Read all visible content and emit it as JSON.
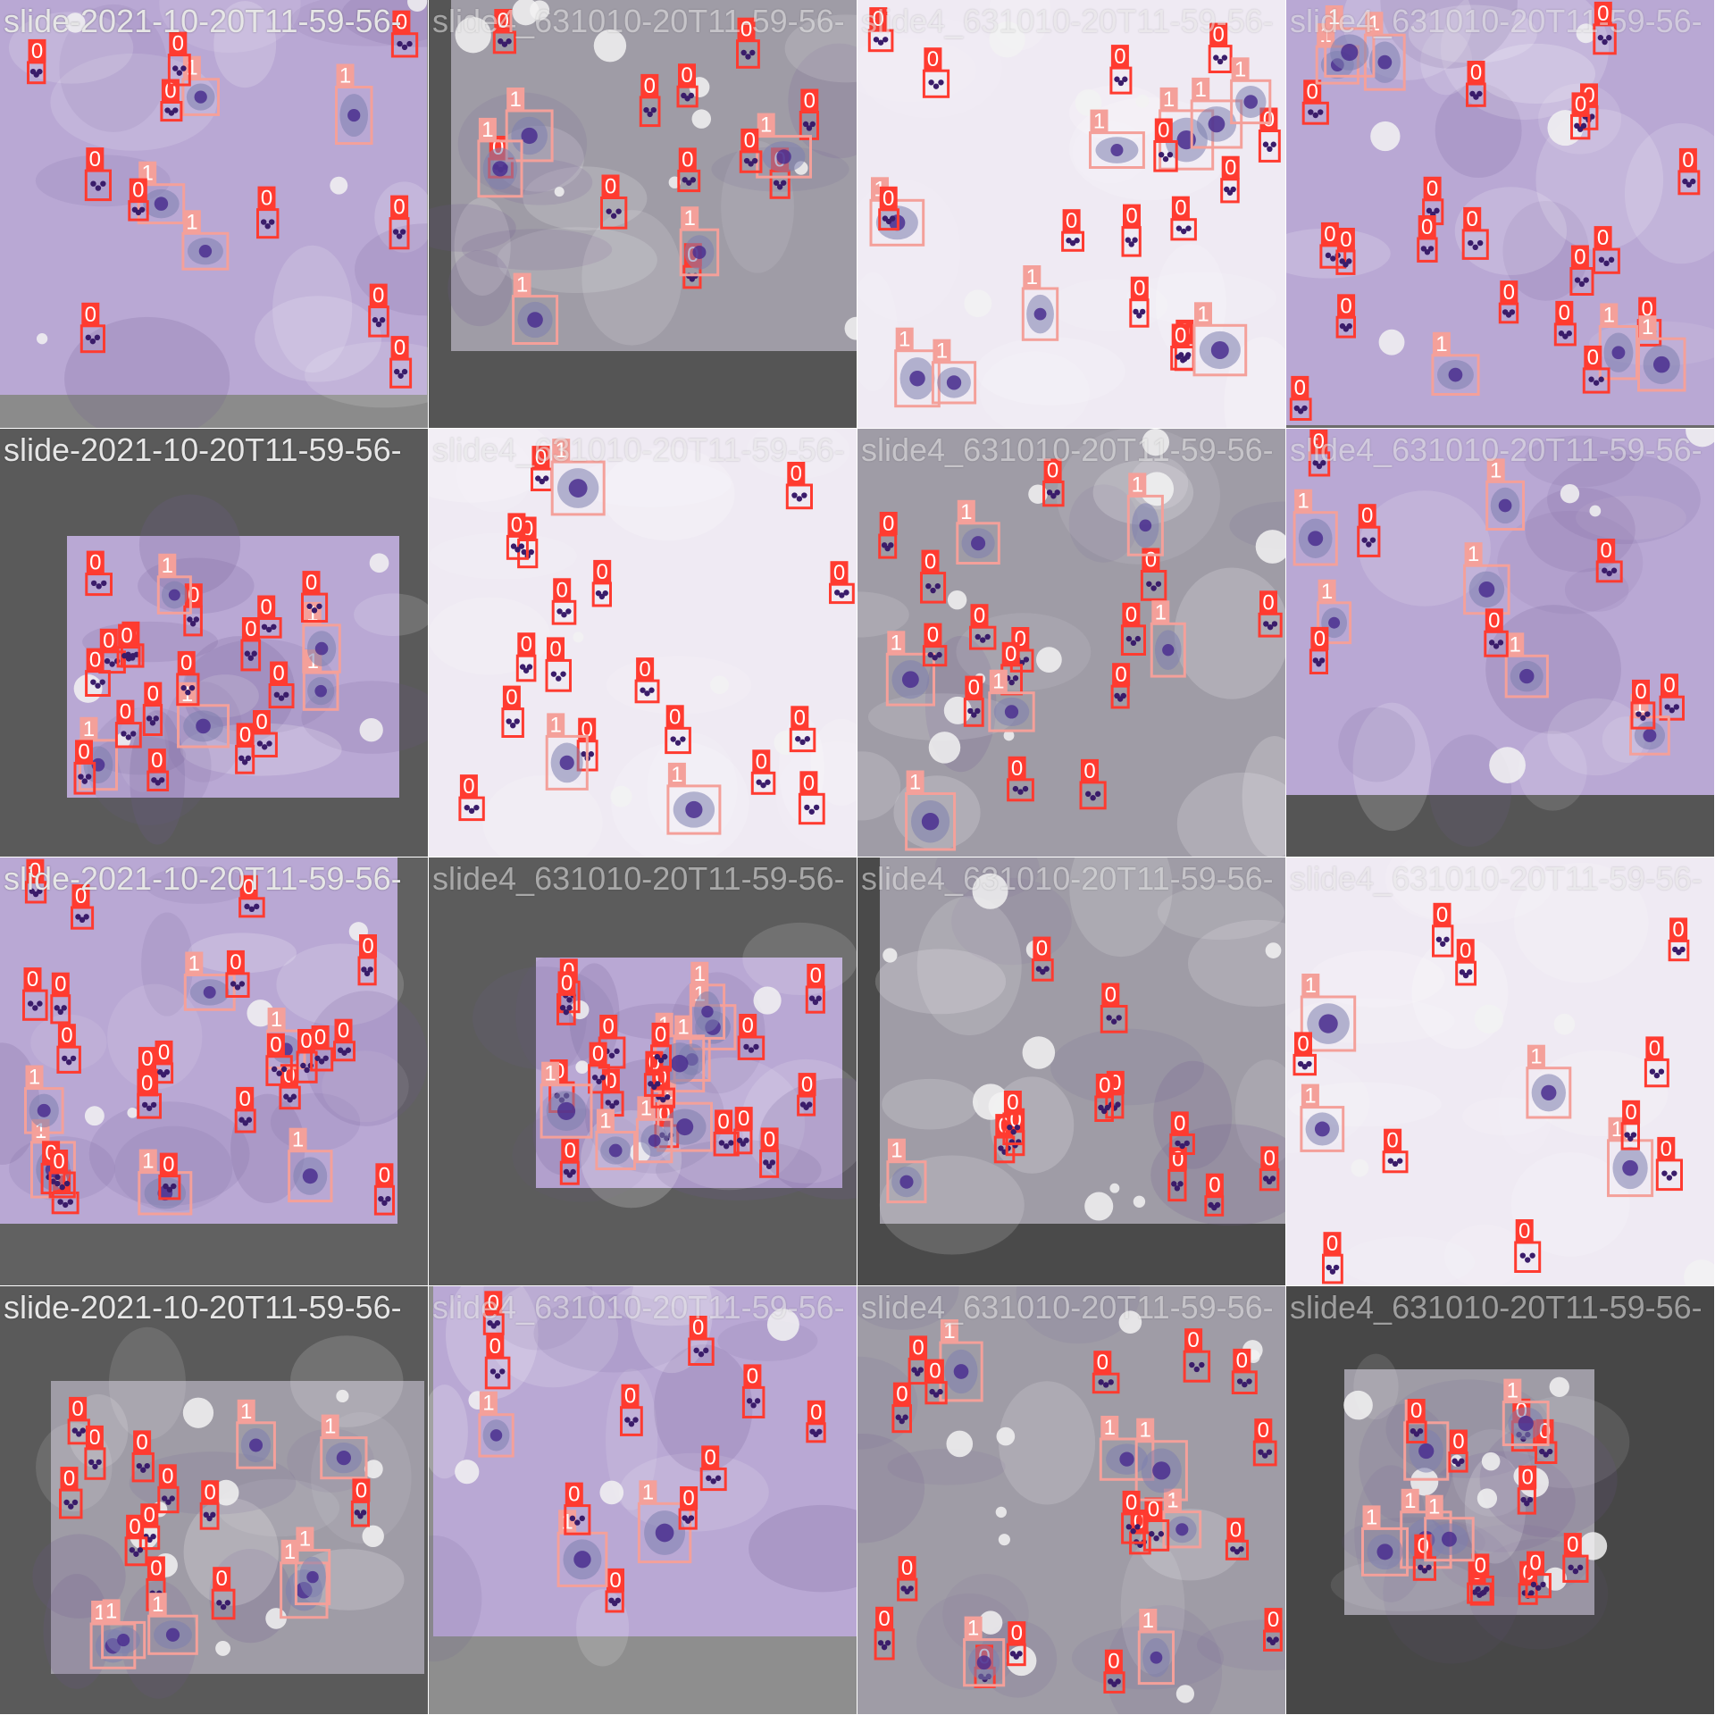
{
  "mosaic": {
    "tiles": [
      {
        "title": "slide-2021-10-20T11-59-56-",
        "mat": "#8b8b8b",
        "tone": "violet"
      },
      {
        "title": "slide4_631010-20T11-59-56-",
        "mat": "#555555",
        "tone": "gray"
      },
      {
        "title": "slide4_631010-20T11-59-56-",
        "mat": "#7a7a7a",
        "tone": "white"
      },
      {
        "title": "slide4_631010-20T11-59-56-",
        "mat": "#6b6b6b",
        "tone": "violet"
      },
      {
        "title": "slide-2021-10-20T11-59-56-",
        "mat": "#5a5a5a",
        "tone": "violet"
      },
      {
        "title": "slide4_631010-20T11-59-56-",
        "mat": "#9a9a9a",
        "tone": "white"
      },
      {
        "title": "slide4_631010-20T11-59-56-",
        "mat": "#808080",
        "tone": "gray"
      },
      {
        "title": "slide4_631010-20T11-59-56-",
        "mat": "#555555",
        "tone": "violet"
      },
      {
        "title": "slide-2021-10-20T11-59-56-",
        "mat": "#616161",
        "tone": "violet"
      },
      {
        "title": "slide4_631010-20T11-59-56-",
        "mat": "#5c5c5c",
        "tone": "violet"
      },
      {
        "title": "slide4_631010-20T11-59-56-",
        "mat": "#4a4a4a",
        "tone": "gray"
      },
      {
        "title": "slide4_631010-20T11-59-56-",
        "mat": "#6d6d6d",
        "tone": "white"
      },
      {
        "title": "slide-2021-10-20T11-59-56-",
        "mat": "#5a5a5a",
        "tone": "gray"
      },
      {
        "title": "slide4_631010-20T11-59-56-",
        "mat": "#8e8e8e",
        "tone": "violet"
      },
      {
        "title": "slide4_631010-20T11-59-56-",
        "mat": "#3f3f3f",
        "tone": "gray"
      },
      {
        "title": "slide4_631010-20T11-59-56-",
        "mat": "#474747",
        "tone": "gray"
      }
    ]
  },
  "labels": {
    "neutrophil": "0",
    "epithelial": "1"
  },
  "colors": {
    "class_0": "#ff3b30",
    "class_1": "#f4a09a",
    "violet_bg": "#b9a8d4",
    "gray_bg": "#9f9ca6",
    "white_bg": "#efeaf3",
    "nucleus": "#4b2f8f",
    "neutrophil": "#3a1c6a"
  }
}
